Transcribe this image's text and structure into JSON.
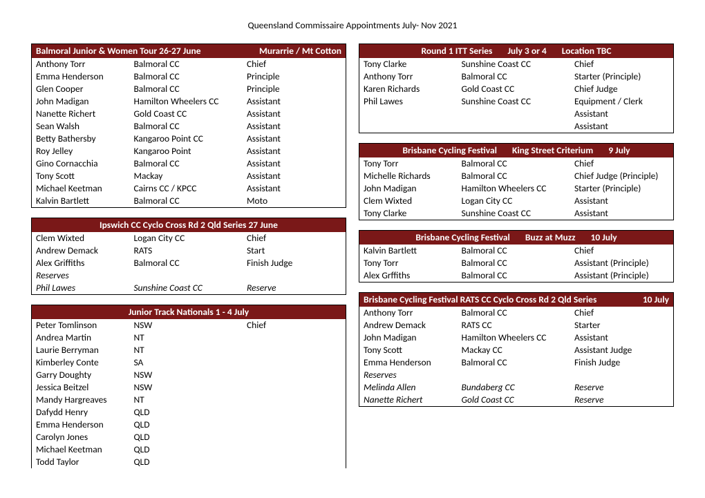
{
  "page_title": "Queensland Commissaire Appointments July- Nov 2021",
  "colors": {
    "header_bg": "#7a1818",
    "header_fg": "#ffffff",
    "border": "#000000"
  },
  "left_tables": [
    {
      "header_mode": "left-right",
      "header_segments": [
        "Balmoral Junior & Women Tour   26-27 June",
        "Murarrie / Mt Cotton"
      ],
      "rows": [
        {
          "c1": "Anthony Torr",
          "c2": "Balmoral CC",
          "c3": "Chief"
        },
        {
          "c1": "Emma Henderson",
          "c2": "Balmoral CC",
          "c3": "Principle"
        },
        {
          "c1": "Glen Cooper",
          "c2": "Balmoral CC",
          "c3": "Principle"
        },
        {
          "c1": "John Madigan",
          "c2": "Hamilton Wheelers CC",
          "c3": "Assistant"
        },
        {
          "c1": "Nanette Richert",
          "c2": "Gold Coast CC",
          "c3": "Assistant"
        },
        {
          "c1": "Sean Walsh",
          "c2": "Balmoral CC",
          "c3": "Assistant"
        },
        {
          "c1": "Betty Bathersby",
          "c2": "Kangaroo Point CC",
          "c3": "Assistant"
        },
        {
          "c1": "Roy Jelley",
          "c2": "Kangaroo Point",
          "c3": "Assistant"
        },
        {
          "c1": "Gino Cornacchia",
          "c2": "Balmoral CC",
          "c3": "Assistant"
        },
        {
          "c1": "Tony Scott",
          "c2": "Mackay",
          "c3": "Assistant"
        },
        {
          "c1": "Michael Keetman",
          "c2": "Cairns CC / KPCC",
          "c3": "Assistant"
        },
        {
          "c1": "Kalvin Bartlett",
          "c2": "Balmoral CC",
          "c3": "Moto"
        }
      ]
    },
    {
      "header_mode": "center",
      "header_segments": [
        "Ipswich CC Cyclo Cross Rd 2 Qld Series   27 June"
      ],
      "rows": [
        {
          "c1": "Clem Wixted",
          "c2": "Logan City CC",
          "c3": "Chief"
        },
        {
          "c1": "Andrew Demack",
          "c2": "RATS",
          "c3": "Start"
        },
        {
          "c1": "Alex Griffiths",
          "c2": "Balmoral CC",
          "c3": "Finish Judge"
        },
        {
          "c1": "Reserves",
          "c2": "",
          "c3": "",
          "section": true
        },
        {
          "c1": "Phil Lawes",
          "c2": "Sunshine Coast CC",
          "c3": "Reserve",
          "italic": true
        }
      ]
    },
    {
      "header_mode": "center",
      "header_segments": [
        "Junior Track Nationals 1 - 4  July"
      ],
      "rows": [
        {
          "c1": "Peter Tomlinson",
          "c2": "NSW",
          "c3": "Chief"
        },
        {
          "c1": "Andrea Martin",
          "c2": "NT",
          "c3": ""
        },
        {
          "c1": "Laurie Berryman",
          "c2": "NT",
          "c3": ""
        },
        {
          "c1": "Kimberley  Conte",
          "c2": "SA",
          "c3": ""
        },
        {
          "c1": "Garry Doughty",
          "c2": "NSW",
          "c3": ""
        },
        {
          "c1": "Jessica Beitzel",
          "c2": "NSW",
          "c3": ""
        },
        {
          "c1": "Mandy Hargreaves",
          "c2": "NT",
          "c3": ""
        },
        {
          "c1": "Dafydd Henry",
          "c2": "QLD",
          "c3": ""
        },
        {
          "c1": "Emma Henderson",
          "c2": "QLD",
          "c3": ""
        },
        {
          "c1": "Carolyn Jones",
          "c2": "QLD",
          "c3": ""
        },
        {
          "c1": "Michael Keetman",
          "c2": "QLD",
          "c3": ""
        },
        {
          "c1": "Todd Taylor",
          "c2": "QLD",
          "c3": ""
        }
      ],
      "open_bottom": true
    }
  ],
  "right_tables": [
    {
      "header_mode": "spread",
      "header_segments": [
        "Round 1 ITT Series",
        "July  3 or 4",
        "Location TBC"
      ],
      "rows": [
        {
          "c1": "Tony Clarke",
          "c2": "Sunshine Coast CC",
          "c3": "Chief"
        },
        {
          "c1": "Anthony Torr",
          "c2": "Balmoral CC",
          "c3": "Starter (Principle)"
        },
        {
          "c1": "Karen Richards",
          "c2": "Gold Coast CC",
          "c3": "Chief Judge"
        },
        {
          "c1": "Phil Lawes",
          "c2": "Sunshine Coast CC",
          "c3": "Equipment / Clerk"
        },
        {
          "c1": "",
          "c2": "",
          "c3": "Assistant"
        },
        {
          "c1": "",
          "c2": "",
          "c3": "Assistant"
        }
      ]
    },
    {
      "header_mode": "spread",
      "header_segments": [
        "Brisbane Cycling Festival",
        "King Street Criterium",
        "9 July"
      ],
      "rows": [
        {
          "c1": "Tony Torr",
          "c2": "Balmoral CC",
          "c3": "Chief"
        },
        {
          "c1": "Michelle Richards",
          "c2": "Balmoral CC",
          "c3": "Chief Judge (Principle)"
        },
        {
          "c1": "John Madigan",
          "c2": "Hamilton Wheelers CC",
          "c3": "Starter (Principle)"
        },
        {
          "c1": "Clem Wixted",
          "c2": "Logan City CC",
          "c3": "Assistant"
        },
        {
          "c1": "Tony Clarke",
          "c2": "Sunshine Coast CC",
          "c3": "Assistant"
        }
      ]
    },
    {
      "header_mode": "spread",
      "header_segments": [
        "Brisbane Cycling Festival",
        "Buzz at Muzz",
        "10 July"
      ],
      "rows": [
        {
          "c1": "Kalvin Bartlett",
          "c2": "Balmoral CC",
          "c3": "Chief"
        },
        {
          "c1": "Tony Torr",
          "c2": "Balmoral CC",
          "c3": "Assistant (Principle)"
        },
        {
          "c1": "Alex Grffiths",
          "c2": "Balmoral CC",
          "c3": "Assistant (Principle)"
        }
      ]
    },
    {
      "header_mode": "left-right",
      "header_segments": [
        "Brisbane Cycling Festival  RATS CC  Cyclo Cross Rd 2 Qld Series",
        "10 July"
      ],
      "rows": [
        {
          "c1": "Anthony Torr",
          "c2": "Balmoral CC",
          "c3": "Chief"
        },
        {
          "c1": "Andrew Demack",
          "c2": "RATS CC",
          "c3": "Starter"
        },
        {
          "c1": "John Madigan",
          "c2": "Hamilton Wheelers CC",
          "c3": "Assistant"
        },
        {
          "c1": "Tony Scott",
          "c2": "Mackay CC",
          "c3": "Assistant Judge"
        },
        {
          "c1": "Emma Henderson",
          "c2": "Balmoral CC",
          "c3": "Finish Judge"
        },
        {
          "c1": "Reserves",
          "c2": "",
          "c3": "",
          "section": true
        },
        {
          "c1": "Melinda Allen",
          "c2": "Bundaberg CC",
          "c3": "Reserve",
          "italic": true
        },
        {
          "c1": "Nanette Richert",
          "c2": "Gold Coast CC",
          "c3": "Reserve",
          "italic": true
        }
      ]
    }
  ]
}
